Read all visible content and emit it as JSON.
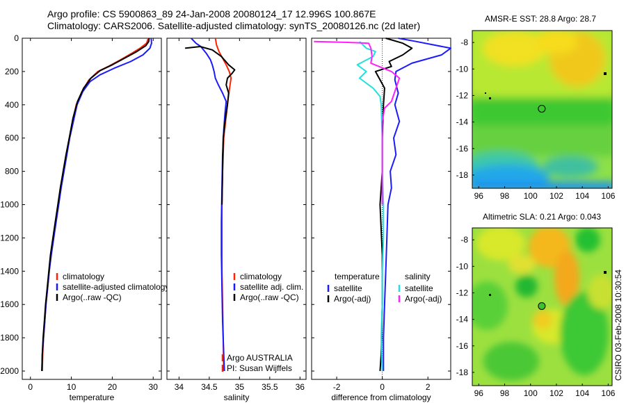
{
  "header": {
    "line1": "Argo profile: CS 5900863_89 24-Jan-2008 20080124_17 12.996S 100.867E",
    "line2": "Climatology: CARS2006. Satellite-adjusted climatology: synTS_20080126.nc (2d later)"
  },
  "colors": {
    "red": "#ff2200",
    "blue": "#1a1aff",
    "black": "#000000",
    "cyan": "#22e0e0",
    "magenta": "#ff20ff"
  },
  "chart_data": [
    {
      "type": "line",
      "id": "temperature",
      "xlabel": "temperature",
      "ylabel": "",
      "xlim": [
        -2,
        32
      ],
      "ylim": [
        2050,
        0
      ],
      "xticks": [
        0,
        10,
        20,
        30
      ],
      "xtick_labels": [
        "0",
        "10",
        "20",
        "30"
      ],
      "yticks": [
        0,
        200,
        400,
        600,
        800,
        1000,
        1200,
        1400,
        1600,
        1800,
        2000
      ],
      "ytick_labels": [
        "0",
        "200",
        "400",
        "600",
        "800",
        "1000",
        "1200",
        "1400",
        "1600",
        "1800",
        "2000"
      ],
      "legend": {
        "position": "lower-middle",
        "entries": [
          "climatology",
          "satellite-adjusted climatology",
          "Argo(..raw -QC)"
        ]
      },
      "series": [
        {
          "name": "climatology",
          "color": "red",
          "points": [
            [
              28.8,
              0
            ],
            [
              28.4,
              30
            ],
            [
              26.8,
              60
            ],
            [
              24.8,
              90
            ],
            [
              22,
              130
            ],
            [
              19,
              170
            ],
            [
              16.5,
              200
            ],
            [
              14.3,
              250
            ],
            [
              12.6,
              320
            ],
            [
              11.2,
              400
            ],
            [
              10.3,
              500
            ],
            [
              9.5,
              600
            ],
            [
              8.8,
              700
            ],
            [
              8.1,
              800
            ],
            [
              7.4,
              900
            ],
            [
              6.8,
              1000
            ],
            [
              6.2,
              1100
            ],
            [
              5.6,
              1200
            ],
            [
              5.0,
              1300
            ],
            [
              4.6,
              1400
            ],
            [
              4.2,
              1500
            ],
            [
              3.8,
              1600
            ],
            [
              3.5,
              1700
            ],
            [
              3.2,
              1800
            ],
            [
              3.0,
              1900
            ],
            [
              2.9,
              2000
            ]
          ]
        },
        {
          "name": "satellite-adjusted climatology",
          "color": "blue",
          "points": [
            [
              29.5,
              0
            ],
            [
              29.6,
              30
            ],
            [
              29.2,
              60
            ],
            [
              27.5,
              100
            ],
            [
              24.5,
              140
            ],
            [
              20.5,
              180
            ],
            [
              17,
              220
            ],
            [
              14.6,
              260
            ],
            [
              12.8,
              320
            ],
            [
              11.4,
              400
            ],
            [
              10.5,
              500
            ],
            [
              9.6,
              600
            ],
            [
              8.9,
              700
            ],
            [
              8.2,
              800
            ],
            [
              7.5,
              900
            ],
            [
              6.9,
              1000
            ],
            [
              6.3,
              1100
            ],
            [
              5.7,
              1200
            ],
            [
              5.1,
              1300
            ],
            [
              4.6,
              1400
            ],
            [
              4.2,
              1500
            ],
            [
              3.8,
              1600
            ],
            [
              3.5,
              1700
            ],
            [
              3.2,
              1800
            ],
            [
              2.9,
              1900
            ],
            [
              2.8,
              2000
            ]
          ]
        },
        {
          "name": "Argo(..raw -QC)",
          "color": "black",
          "points": [
            [
              29.0,
              0
            ],
            [
              28.9,
              20
            ],
            [
              28.2,
              45
            ],
            [
              26,
              80
            ],
            [
              23,
              120
            ],
            [
              20,
              160
            ],
            [
              17,
              195
            ],
            [
              14.8,
              240
            ],
            [
              13,
              300
            ],
            [
              11.5,
              380
            ],
            [
              10.4,
              480
            ],
            [
              9.5,
              600
            ],
            [
              8.7,
              700
            ],
            [
              8,
              800
            ],
            [
              7.3,
              900
            ],
            [
              6.7,
              1000
            ],
            [
              6.1,
              1100
            ],
            [
              5.5,
              1200
            ],
            [
              4.9,
              1300
            ],
            [
              4.5,
              1400
            ],
            [
              4.1,
              1500
            ],
            [
              3.7,
              1600
            ],
            [
              3.4,
              1700
            ],
            [
              3.1,
              1800
            ],
            [
              2.9,
              1900
            ],
            [
              2.8,
              2000
            ]
          ]
        }
      ]
    },
    {
      "type": "line",
      "id": "salinity",
      "xlabel": "salinity",
      "ylabel": "",
      "xlim": [
        33.8,
        36.1
      ],
      "ylim": [
        2050,
        0
      ],
      "xticks": [
        34,
        34.5,
        35,
        35.5,
        36
      ],
      "xtick_labels": [
        "34",
        "34.5",
        "35",
        "35.5",
        "36"
      ],
      "yticks": [
        0,
        200,
        400,
        600,
        800,
        1000,
        1200,
        1400,
        1600,
        1800,
        2000
      ],
      "ytick_labels": [],
      "legend": {
        "position": "lower-right",
        "entries": [
          "climatology",
          "satellite adj. clim.",
          "Argo(..raw -QC)"
        ]
      },
      "annotations": [
        "Argo AUSTRALIA",
        "PI: Susan Wijffels"
      ],
      "series": [
        {
          "name": "climatology",
          "color": "red",
          "points": [
            [
              34.6,
              0
            ],
            [
              34.62,
              40
            ],
            [
              34.66,
              80
            ],
            [
              34.72,
              120
            ],
            [
              34.78,
              160
            ],
            [
              34.83,
              200
            ],
            [
              34.86,
              240
            ],
            [
              34.84,
              290
            ],
            [
              34.82,
              340
            ],
            [
              34.8,
              400
            ],
            [
              34.77,
              500
            ],
            [
              34.74,
              600
            ],
            [
              34.72,
              800
            ],
            [
              34.71,
              1000
            ],
            [
              34.71,
              1200
            ],
            [
              34.71,
              1400
            ],
            [
              34.72,
              1600
            ],
            [
              34.73,
              1800
            ],
            [
              34.74,
              2000
            ]
          ]
        },
        {
          "name": "satellite adj. clim.",
          "color": "blue",
          "points": [
            [
              34.2,
              0
            ],
            [
              34.28,
              30
            ],
            [
              34.36,
              50
            ],
            [
              34.45,
              90
            ],
            [
              34.52,
              130
            ],
            [
              34.55,
              160
            ],
            [
              34.58,
              200
            ],
            [
              34.6,
              240
            ],
            [
              34.65,
              280
            ],
            [
              34.72,
              330
            ],
            [
              34.78,
              380
            ],
            [
              34.76,
              450
            ],
            [
              34.74,
              550
            ],
            [
              34.72,
              700
            ],
            [
              34.71,
              900
            ],
            [
              34.7,
              1100
            ],
            [
              34.7,
              1300
            ],
            [
              34.71,
              1500
            ],
            [
              34.72,
              1700
            ],
            [
              34.74,
              1900
            ],
            [
              34.75,
              2000
            ]
          ]
        },
        {
          "name": "Argo(..raw -QC)",
          "color": "black",
          "points": [
            [
              34.1,
              60
            ],
            [
              34.35,
              50
            ],
            [
              34.55,
              70
            ],
            [
              34.7,
              110
            ],
            [
              34.82,
              160
            ],
            [
              34.92,
              190
            ],
            [
              34.88,
              210
            ],
            [
              34.8,
              240
            ],
            [
              34.78,
              280
            ],
            [
              34.82,
              330
            ],
            [
              34.8,
              400
            ],
            [
              34.76,
              500
            ],
            [
              34.73,
              600
            ],
            [
              34.72,
              800
            ],
            [
              34.71,
              1000
            ]
          ]
        }
      ]
    },
    {
      "type": "line",
      "id": "difference",
      "xlabel": "difference from climatology",
      "ylabel": "",
      "xlim": [
        -3.1,
        3.0
      ],
      "ylim": [
        2050,
        0
      ],
      "xticks": [
        -2,
        0,
        2
      ],
      "xtick_labels": [
        "-2",
        "0",
        "2"
      ],
      "yticks": [
        0,
        200,
        400,
        600,
        800,
        1000,
        1200,
        1400,
        1600,
        1800,
        2000
      ],
      "ytick_labels": [],
      "legend": {
        "position": "lower-middle",
        "headers": [
          "temperature",
          "salinity"
        ],
        "entries": [
          "satellite",
          "Argo(-adj)",
          "satellite",
          "Argo(-adj)"
        ]
      },
      "series": [
        {
          "name": "temperature satellite",
          "color": "blue",
          "points": [
            [
              0.7,
              0
            ],
            [
              1.5,
              20
            ],
            [
              3.0,
              60
            ],
            [
              2.6,
              100
            ],
            [
              1.3,
              150
            ],
            [
              0.6,
              200
            ],
            [
              0.55,
              250
            ],
            [
              0.7,
              330
            ],
            [
              0.55,
              400
            ],
            [
              0.75,
              500
            ],
            [
              0.5,
              600
            ],
            [
              0.6,
              700
            ],
            [
              0.35,
              800
            ],
            [
              0.4,
              900
            ],
            [
              0.25,
              1000
            ],
            [
              0.2,
              1200
            ],
            [
              0.15,
              1400
            ],
            [
              0.1,
              1600
            ],
            [
              0.05,
              1800
            ],
            [
              0.05,
              2000
            ]
          ]
        },
        {
          "name": "temperature Argo(-adj)",
          "color": "black",
          "points": [
            [
              0.15,
              0
            ],
            [
              0.9,
              30
            ],
            [
              1.3,
              60
            ],
            [
              0.9,
              100
            ],
            [
              0.3,
              140
            ],
            [
              0.4,
              170
            ],
            [
              -0.3,
              200
            ],
            [
              -0.1,
              250
            ],
            [
              0.1,
              300
            ],
            [
              0.05,
              400
            ],
            [
              0.0,
              600
            ],
            [
              0.0,
              800
            ],
            [
              -0.1,
              1000
            ],
            [
              0.0,
              1300
            ],
            [
              0.0,
              1600
            ],
            [
              -0.05,
              1900
            ],
            [
              -0.1,
              2000
            ]
          ]
        },
        {
          "name": "salinity satellite",
          "color": "cyan",
          "points": [
            [
              -1.0,
              20
            ],
            [
              -0.7,
              60
            ],
            [
              -0.3,
              80
            ],
            [
              -0.4,
              110
            ],
            [
              -1.1,
              160
            ],
            [
              -0.7,
              200
            ],
            [
              -1.0,
              240
            ],
            [
              -0.4,
              300
            ],
            [
              -0.1,
              350
            ],
            [
              -0.05,
              400
            ],
            [
              0.0,
              600
            ],
            [
              0.0,
              800
            ],
            [
              0.05,
              1000
            ],
            [
              0.05,
              1200
            ],
            [
              0.0,
              1400
            ],
            [
              0.0,
              1600
            ],
            [
              -0.05,
              1800
            ],
            [
              0.0,
              2000
            ]
          ]
        },
        {
          "name": "salinity Argo(-adj)",
          "color": "magenta",
          "points": [
            [
              -3.0,
              20
            ],
            [
              -1.5,
              25
            ],
            [
              -0.6,
              30
            ],
            [
              -0.5,
              60
            ],
            [
              -0.45,
              110
            ],
            [
              -0.5,
              150
            ],
            [
              0.4,
              200
            ],
            [
              0.75,
              240
            ],
            [
              0.6,
              300
            ],
            [
              0.4,
              380
            ],
            [
              0.1,
              420
            ],
            [
              0.0,
              500
            ],
            [
              0.0,
              700
            ],
            [
              0.0,
              1000
            ]
          ]
        }
      ]
    }
  ],
  "map_sst": {
    "title": "AMSR-E SST: 28.8 Argo: 28.7",
    "xticks": [
      96,
      98,
      100,
      102,
      104,
      106
    ],
    "yticks": [
      -8,
      -10,
      -12,
      -14,
      -16,
      -18
    ],
    "xtick_labels": [
      "96",
      "98",
      "100",
      "102",
      "104",
      "106"
    ],
    "ytick_labels": [
      "-8",
      "-10",
      "-12",
      "-14",
      "-16",
      "-18"
    ],
    "marker": {
      "lon": 100.867,
      "lat": -12.996
    }
  },
  "map_sla": {
    "title": "Altimetric SLA: 0.21 Argo: 0.043",
    "xticks": [
      96,
      98,
      100,
      102,
      104,
      106
    ],
    "yticks": [
      -8,
      -10,
      -12,
      -14,
      -16,
      -18
    ],
    "xtick_labels": [
      "96",
      "98",
      "100",
      "102",
      "104",
      "106"
    ],
    "ytick_labels": [
      "-8",
      "-10",
      "-12",
      "-14",
      "-16",
      "-18"
    ],
    "marker": {
      "lon": 100.867,
      "lat": -12.996
    }
  },
  "footer": {
    "side_label": "CSIRO 03-Feb-2008 10:30:54"
  }
}
